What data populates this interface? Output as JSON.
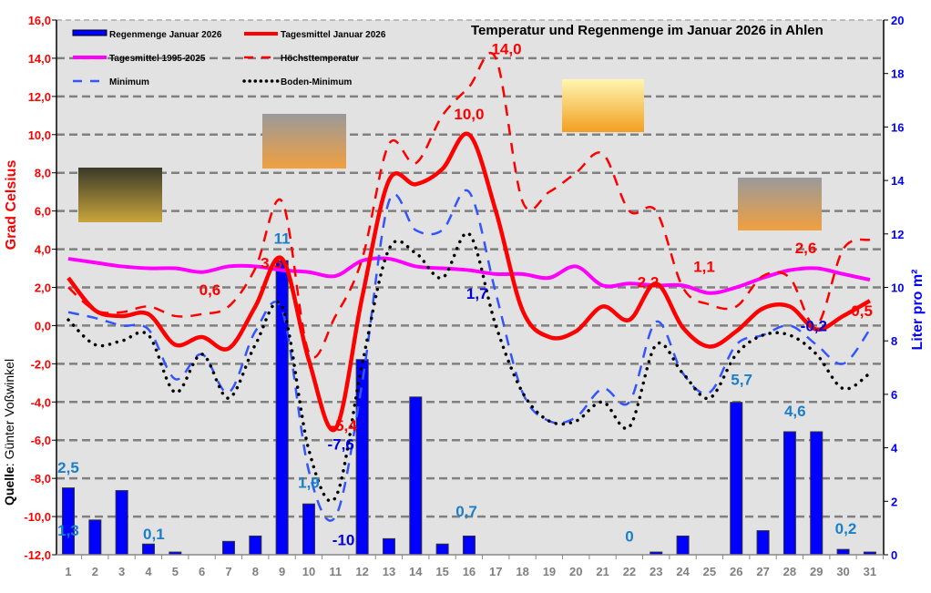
{
  "chart_data": {
    "type": "bar+line",
    "title": "Temperatur und Regenmenge im Januar 2026 in Ahlen",
    "ylabel": "Grad Celsius",
    "y2label": "Liter pro m²",
    "source_label": "Quelle",
    "source_name": ": Günter Voßwinkel",
    "ylim": [
      -12,
      16
    ],
    "y2lim": [
      0,
      20
    ],
    "yticks": [
      "-12,0",
      "-10,0",
      "-8,0",
      "-6,0",
      "-4,0",
      "-2,0",
      "0,0",
      "2,0",
      "4,0",
      "6,0",
      "8,0",
      "10,0",
      "12,0",
      "14,0",
      "16,0"
    ],
    "y2ticks": [
      "0",
      "2",
      "4",
      "6",
      "8",
      "10",
      "12",
      "14",
      "16",
      "18",
      "20"
    ],
    "grid": true,
    "legend_position": "top-left",
    "categories": [
      "1",
      "2",
      "3",
      "4",
      "5",
      "6",
      "7",
      "8",
      "9",
      "10",
      "11",
      "12",
      "13",
      "14",
      "15",
      "16",
      "17",
      "18",
      "19",
      "20",
      "21",
      "22",
      "23",
      "24",
      "25",
      "26",
      "27",
      "28",
      "29",
      "30",
      "31"
    ],
    "series": [
      {
        "name": "Regenmenge Januar 2026",
        "type": "bar",
        "axis": "right",
        "color": "#0000ff",
        "values": [
          2.5,
          1.3,
          2.4,
          0.4,
          0.1,
          0,
          0.5,
          0.7,
          11,
          1.9,
          0,
          7.3,
          0.6,
          5.9,
          0.4,
          0.7,
          0,
          0,
          0,
          0,
          0,
          0,
          0.1,
          0.7,
          0,
          5.7,
          0.9,
          4.6,
          4.6,
          0.2,
          0.1
        ]
      },
      {
        "name": "Tagesmittel Januar 2026",
        "type": "line",
        "style": "solid",
        "color": "#ff0000",
        "values": [
          2.5,
          0.8,
          0.5,
          0.6,
          -1.0,
          -0.6,
          -1.2,
          1.0,
          3.5,
          -1.8,
          -5.4,
          1.5,
          7.6,
          7.4,
          8.2,
          10.0,
          6.0,
          0.8,
          -0.6,
          -0.3,
          1.0,
          0.3,
          2.2,
          -0.1,
          -1.1,
          -0.3,
          0.9,
          1.0,
          -0.2,
          0.5,
          1.3
        ]
      },
      {
        "name": "Tagesmittel 1995-2025",
        "type": "line",
        "style": "solid",
        "color": "#ff00ff",
        "values": [
          3.5,
          3.3,
          3.1,
          3.0,
          3.0,
          2.8,
          3.1,
          3.1,
          2.9,
          2.8,
          2.6,
          3.4,
          3.5,
          3.1,
          3.0,
          2.9,
          2.7,
          2.7,
          2.5,
          3.1,
          2.1,
          2.2,
          2.1,
          2.1,
          1.7,
          2.0,
          2.5,
          2.9,
          3.0,
          2.7,
          2.4
        ]
      },
      {
        "name": "Höchsttemperatur",
        "type": "line",
        "style": "dashed",
        "color": "#ff0000",
        "values": [
          2.0,
          0.8,
          0.7,
          1.0,
          0.5,
          0.6,
          1.0,
          3.0,
          6.5,
          -1.4,
          0.5,
          3.5,
          9.5,
          8.5,
          11.0,
          12.5,
          14.0,
          6.5,
          7.0,
          8.0,
          9.0,
          6.0,
          6.0,
          2.0,
          1.1,
          1.0,
          2.6,
          2.5,
          0.0,
          4.0,
          4.5
        ]
      },
      {
        "name": "Minimum",
        "type": "line",
        "style": "dashed",
        "color": "#3355ff",
        "values": [
          0.7,
          0.4,
          0.0,
          -0.2,
          -2.8,
          -1.5,
          -3.5,
          -0.3,
          0.8,
          -7.6,
          -10.0,
          -3.0,
          6.5,
          5.0,
          5.0,
          7.0,
          1.7,
          -3.5,
          -5.0,
          -4.8,
          -3.3,
          -4.0,
          0.2,
          -2.5,
          -3.5,
          -1.0,
          -0.5,
          0.0,
          -1.0,
          -2.0,
          -0.2
        ]
      },
      {
        "name": "Boden-Minimum",
        "type": "line",
        "style": "dotted",
        "color": "#000000",
        "values": [
          0.3,
          -1.0,
          -0.8,
          -0.5,
          -3.5,
          -1.5,
          -3.8,
          -1.0,
          1.0,
          -6.5,
          -9.0,
          -2.0,
          4.0,
          3.8,
          2.5,
          4.8,
          0.0,
          -3.5,
          -5.0,
          -5.0,
          -4.0,
          -5.3,
          -1.0,
          -2.5,
          -3.8,
          -1.5,
          -0.5,
          -0.5,
          -1.5,
          -3.3,
          -2.5
        ]
      }
    ],
    "annotations": [
      {
        "text": "2,5",
        "color": "#1a7fc8",
        "x": 1,
        "y": -7.7
      },
      {
        "text": "1,3",
        "color": "#1a7fc8",
        "x": 1,
        "y": -11.0
      },
      {
        "text": "0,1",
        "color": "#1a7fc8",
        "x": 4.2,
        "y": -11.2
      },
      {
        "text": "11",
        "color": "#1a7fc8",
        "x": 9,
        "y": 4.3
      },
      {
        "text": "3,5",
        "color": "#ff0000",
        "x": 8.6,
        "y": 3.0
      },
      {
        "text": "0,6",
        "color": "#ff0000",
        "x": 6.3,
        "y": 1.6
      },
      {
        "text": "1,9",
        "color": "#1a7fc8",
        "x": 10,
        "y": -8.5
      },
      {
        "text": "-7,6",
        "color": "#0000dd",
        "x": 11.2,
        "y": -6.5
      },
      {
        "text": "-5,4",
        "color": "#ff0000",
        "x": 11.3,
        "y": -5.7
      },
      {
        "text": "-10",
        "color": "#0000dd",
        "x": 11.3,
        "y": -11.5
      },
      {
        "text": "10,0",
        "color": "#ff0000",
        "x": 16,
        "y": 10.8
      },
      {
        "text": "14,0",
        "color": "#ff0000",
        "x": 17.4,
        "y": 14.6
      },
      {
        "text": "1,7",
        "color": "#0000dd",
        "x": 16.3,
        "y": 1.4
      },
      {
        "text": "0,7",
        "color": "#1a7fc8",
        "x": 15.9,
        "y": -10.0
      },
      {
        "text": "0",
        "color": "#1a7fc8",
        "x": 22,
        "y": -11.3
      },
      {
        "text": "2,2",
        "color": "#ff0000",
        "x": 22.7,
        "y": 2.0
      },
      {
        "text": "1,1",
        "color": "#ff0000",
        "x": 24.8,
        "y": 2.8
      },
      {
        "text": "2,6",
        "color": "#ff0000",
        "x": 28.6,
        "y": 3.8
      },
      {
        "text": "-0,2",
        "color": "#0000dd",
        "x": 28.9,
        "y": -0.3
      },
      {
        "text": "0,5",
        "color": "#ff0000",
        "x": 30.7,
        "y": 0.5
      },
      {
        "text": "5,7",
        "color": "#1a7fc8",
        "x": 26.2,
        "y": -3.1
      },
      {
        "text": "4,6",
        "color": "#1a7fc8",
        "x": 28.2,
        "y": -4.75
      },
      {
        "text": "0,2",
        "color": "#1a7fc8",
        "x": 30.1,
        "y": -10.9
      }
    ],
    "weather_images": [
      "rain",
      "cloud-sun",
      "sun",
      "cloud-sun"
    ]
  }
}
